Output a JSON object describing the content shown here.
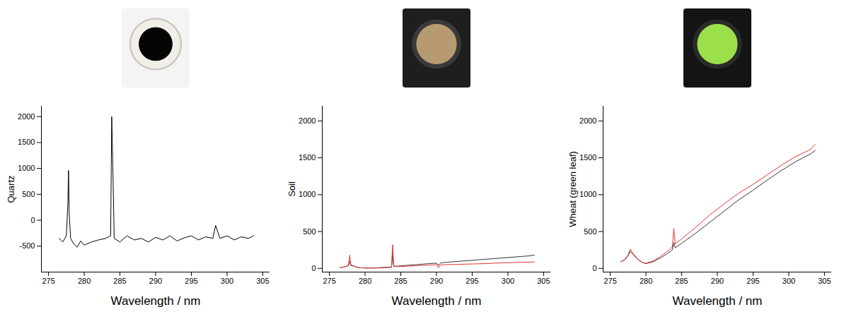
{
  "chart_data": [
    {
      "type": "line",
      "ylabel": "Quartz",
      "xlabel": "Wavelength / nm",
      "x": [
        276.5,
        277,
        277.5,
        277.7,
        277.8,
        277.9,
        278.1,
        278.5,
        279,
        279.5,
        280,
        281,
        282,
        283,
        283.7,
        283.85,
        284.0,
        284.2,
        285,
        286,
        287,
        288,
        289,
        290,
        291,
        292,
        293,
        294,
        295,
        296,
        297,
        298,
        298.4,
        299,
        300,
        301,
        302,
        303,
        303.7
      ],
      "series": [
        {
          "color": "#000000",
          "values": [
            -350,
            -420,
            -300,
            300,
            960,
            100,
            -350,
            -450,
            -520,
            -400,
            -480,
            -420,
            -380,
            -350,
            -300,
            2000,
            1050,
            -350,
            -420,
            -300,
            -380,
            -350,
            -420,
            -330,
            -380,
            -300,
            -400,
            -340,
            -300,
            -380,
            -320,
            -350,
            -100,
            -350,
            -300,
            -380,
            -320,
            -350,
            -300
          ]
        }
      ],
      "xlim": [
        274,
        306
      ],
      "xticks": [
        275,
        280,
        285,
        290,
        295,
        300,
        305
      ],
      "ylim": [
        -1000,
        2200
      ],
      "yticks": [
        -500,
        0,
        500,
        1000,
        1500,
        2000
      ]
    },
    {
      "type": "line",
      "ylabel": "Soil",
      "xlabel": "Wavelength / nm",
      "x": [
        276.5,
        277,
        277.5,
        277.7,
        277.85,
        278,
        278.5,
        279,
        280,
        281,
        282,
        283,
        283.7,
        283.85,
        284,
        284.5,
        285,
        287,
        289,
        290,
        290.3,
        290.6,
        291,
        293,
        295,
        297,
        299,
        301,
        303,
        303.7
      ],
      "series": [
        {
          "color": "#333333",
          "values": [
            10,
            20,
            30,
            40,
            100,
            40,
            30,
            10,
            5,
            5,
            10,
            15,
            20,
            200,
            30,
            30,
            35,
            50,
            65,
            70,
            40,
            75,
            80,
            95,
            110,
            125,
            140,
            155,
            170,
            180
          ]
        },
        {
          "color": "#e8312f",
          "values": [
            10,
            20,
            30,
            60,
            180,
            50,
            30,
            10,
            5,
            5,
            5,
            10,
            15,
            320,
            30,
            25,
            25,
            35,
            45,
            50,
            10,
            50,
            50,
            55,
            60,
            65,
            75,
            80,
            85,
            90
          ]
        }
      ],
      "xlim": [
        274,
        306
      ],
      "xticks": [
        275,
        280,
        285,
        290,
        295,
        300,
        305
      ],
      "ylim": [
        -50,
        2200
      ],
      "yticks": [
        0,
        500,
        1000,
        1500,
        2000
      ]
    },
    {
      "type": "line",
      "ylabel": "Wheat (green leaf)",
      "xlabel": "Wavelength / nm",
      "x": [
        276.5,
        277,
        277.5,
        277.8,
        278.2,
        278.8,
        279.5,
        280,
        281,
        282,
        283,
        283.7,
        283.9,
        284.1,
        285,
        287,
        289,
        291,
        293,
        295,
        297,
        299,
        301,
        303,
        303.7
      ],
      "series": [
        {
          "color": "#333333",
          "values": [
            90,
            115,
            170,
            230,
            190,
            125,
            80,
            65,
            90,
            140,
            200,
            250,
            350,
            280,
            340,
            480,
            630,
            780,
            930,
            1060,
            1200,
            1330,
            1450,
            1550,
            1600
          ]
        },
        {
          "color": "#e8312f",
          "values": [
            90,
            120,
            180,
            260,
            200,
            130,
            80,
            70,
            100,
            160,
            230,
            290,
            540,
            330,
            400,
            560,
            730,
            880,
            1020,
            1140,
            1270,
            1400,
            1520,
            1610,
            1680
          ]
        }
      ],
      "xlim": [
        274,
        306
      ],
      "xticks": [
        275,
        280,
        285,
        290,
        295,
        300,
        305
      ],
      "ylim": [
        -50,
        2200
      ],
      "yticks": [
        0,
        500,
        1000,
        1500,
        2000
      ]
    }
  ]
}
